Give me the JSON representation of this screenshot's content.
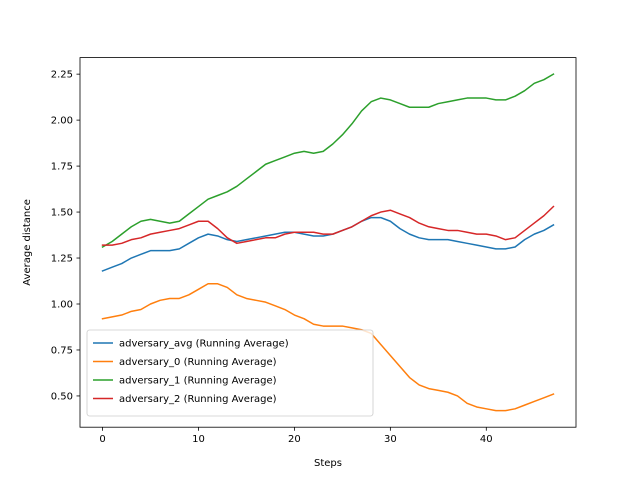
{
  "chart_data": {
    "type": "line",
    "xlabel": "Steps",
    "ylabel": "Average distance",
    "xlim": [
      -2.35,
      49.35
    ],
    "ylim": [
      0.33,
      2.34
    ],
    "xticks": [
      0,
      10,
      20,
      30,
      40
    ],
    "yticks": [
      0.5,
      0.75,
      1.0,
      1.25,
      1.5,
      1.75,
      2.0,
      2.25
    ],
    "ytick_labels": [
      "0.50",
      "0.75",
      "1.00",
      "1.25",
      "1.50",
      "1.75",
      "2.00",
      "2.25"
    ],
    "xtick_labels": [
      "0",
      "10",
      "20",
      "30",
      "40"
    ],
    "grid": false,
    "legend_position": "lower-left",
    "x": [
      0,
      1,
      2,
      3,
      4,
      5,
      6,
      7,
      8,
      9,
      10,
      11,
      12,
      13,
      14,
      15,
      16,
      17,
      18,
      19,
      20,
      21,
      22,
      23,
      24,
      25,
      26,
      27,
      28,
      29,
      30,
      31,
      32,
      33,
      34,
      35,
      36,
      37,
      38,
      39,
      40,
      41,
      42,
      43,
      44,
      45,
      46,
      47
    ],
    "series": [
      {
        "name": "adversary_avg (Running Average)",
        "color": "#1f77b4",
        "values": [
          1.18,
          1.2,
          1.22,
          1.25,
          1.27,
          1.29,
          1.29,
          1.29,
          1.3,
          1.33,
          1.36,
          1.38,
          1.37,
          1.35,
          1.34,
          1.35,
          1.36,
          1.37,
          1.38,
          1.39,
          1.39,
          1.38,
          1.37,
          1.37,
          1.38,
          1.4,
          1.42,
          1.45,
          1.47,
          1.47,
          1.45,
          1.41,
          1.38,
          1.36,
          1.35,
          1.35,
          1.35,
          1.34,
          1.33,
          1.32,
          1.31,
          1.3,
          1.3,
          1.31,
          1.35,
          1.38,
          1.4,
          1.43
        ]
      },
      {
        "name": "adversary_0 (Running Average)",
        "color": "#ff7f0e",
        "values": [
          0.92,
          0.93,
          0.94,
          0.96,
          0.97,
          1.0,
          1.02,
          1.03,
          1.03,
          1.05,
          1.08,
          1.11,
          1.11,
          1.09,
          1.05,
          1.03,
          1.02,
          1.01,
          0.99,
          0.97,
          0.94,
          0.92,
          0.89,
          0.88,
          0.88,
          0.88,
          0.87,
          0.86,
          0.84,
          0.78,
          0.72,
          0.66,
          0.6,
          0.56,
          0.54,
          0.53,
          0.52,
          0.5,
          0.46,
          0.44,
          0.43,
          0.42,
          0.42,
          0.43,
          0.45,
          0.47,
          0.49,
          0.51
        ]
      },
      {
        "name": "adversary_1 (Running Average)",
        "color": "#2ca02c",
        "values": [
          1.31,
          1.34,
          1.38,
          1.42,
          1.45,
          1.46,
          1.45,
          1.44,
          1.45,
          1.49,
          1.53,
          1.57,
          1.59,
          1.61,
          1.64,
          1.68,
          1.72,
          1.76,
          1.78,
          1.8,
          1.82,
          1.83,
          1.82,
          1.83,
          1.87,
          1.92,
          1.98,
          2.05,
          2.1,
          2.12,
          2.11,
          2.09,
          2.07,
          2.07,
          2.07,
          2.09,
          2.1,
          2.11,
          2.12,
          2.12,
          2.12,
          2.11,
          2.11,
          2.13,
          2.16,
          2.2,
          2.22,
          2.25
        ]
      },
      {
        "name": "adversary_2 (Running Average)",
        "color": "#d62728",
        "values": [
          1.32,
          1.32,
          1.33,
          1.35,
          1.36,
          1.38,
          1.39,
          1.4,
          1.41,
          1.43,
          1.45,
          1.45,
          1.41,
          1.36,
          1.33,
          1.34,
          1.35,
          1.36,
          1.36,
          1.38,
          1.39,
          1.39,
          1.39,
          1.38,
          1.38,
          1.4,
          1.42,
          1.45,
          1.48,
          1.5,
          1.51,
          1.49,
          1.47,
          1.44,
          1.42,
          1.41,
          1.4,
          1.4,
          1.39,
          1.38,
          1.38,
          1.37,
          1.35,
          1.36,
          1.4,
          1.44,
          1.48,
          1.53
        ]
      }
    ]
  }
}
